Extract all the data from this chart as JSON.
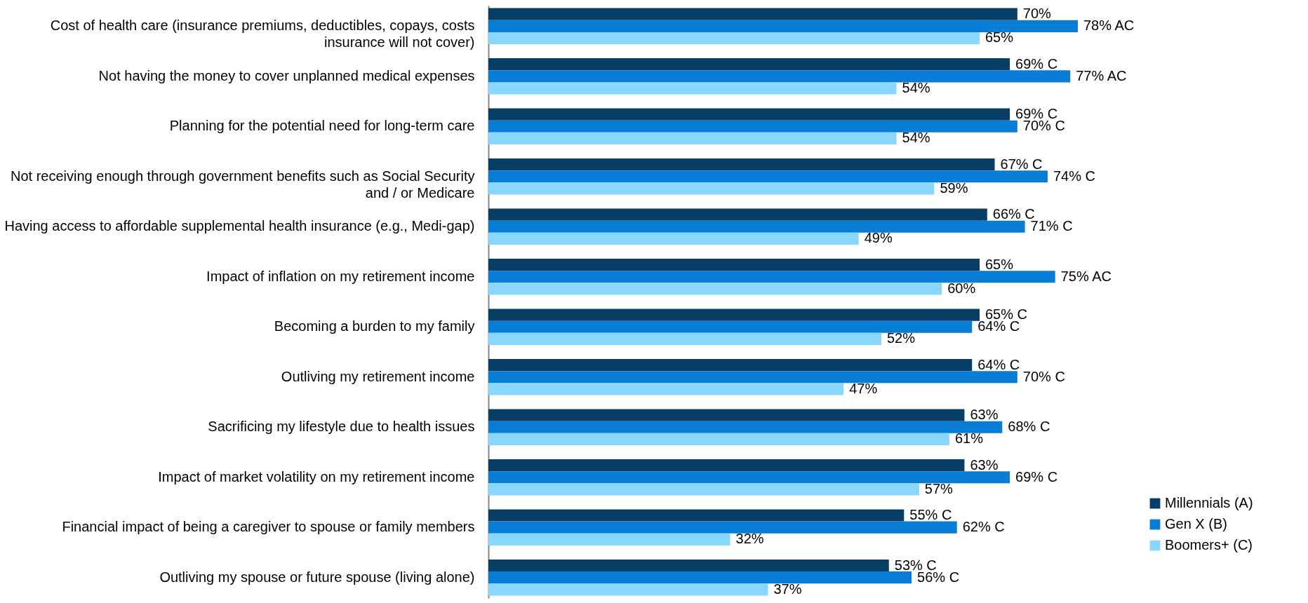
{
  "chart_data": {
    "type": "bar",
    "orientation": "horizontal",
    "categories": [
      "Cost of health care (insurance premiums, deductibles, copays, costs insurance will not cover)",
      "Not having the money to cover unplanned medical expenses",
      "Planning for the potential need for long-term care",
      "Not receiving enough through government benefits such as Social Security and / or Medicare",
      "Having access to affordable supplemental health insurance (e.g., Medi-gap)",
      "Impact of inflation on my retirement income",
      "Becoming a burden to my family",
      "Outliving my retirement income",
      "Sacrificing my lifestyle due to health issues",
      "Impact of market volatility on my retirement income",
      "Financial impact of being a caregiver to spouse or family members",
      "Outliving my spouse or future spouse (living alone)"
    ],
    "series": [
      {
        "name": "Millennials (A)",
        "color": "#083d66",
        "values": [
          70,
          69,
          69,
          67,
          66,
          65,
          65,
          64,
          63,
          63,
          55,
          53
        ],
        "value_labels": [
          "70%",
          "69% C",
          "69% C",
          "67% C",
          "66% C",
          "65%",
          "65% C",
          "64% C",
          "63%",
          "63%",
          "55% C",
          "53% C"
        ]
      },
      {
        "name": "Gen X (B)",
        "color": "#087dd6",
        "values": [
          78,
          77,
          70,
          74,
          71,
          75,
          64,
          70,
          68,
          69,
          62,
          56
        ],
        "value_labels": [
          "78% AC",
          "77% AC",
          "70% C",
          "74% C",
          "71% C",
          "75% AC",
          "64% C",
          "70% C",
          "68% C",
          "69% C",
          "62% C",
          "56% C"
        ]
      },
      {
        "name": "Boomers+ (C)",
        "color": "#89d6fe",
        "values": [
          65,
          54,
          54,
          59,
          49,
          60,
          52,
          47,
          61,
          57,
          32,
          37
        ],
        "value_labels": [
          "65%",
          "54%",
          "54%",
          "59%",
          "49%",
          "60%",
          "52%",
          "47%",
          "61%",
          "57%",
          "32%",
          "37%"
        ]
      }
    ],
    "tick_labels": "y",
    "grid": false,
    "legend": "bottom right"
  }
}
